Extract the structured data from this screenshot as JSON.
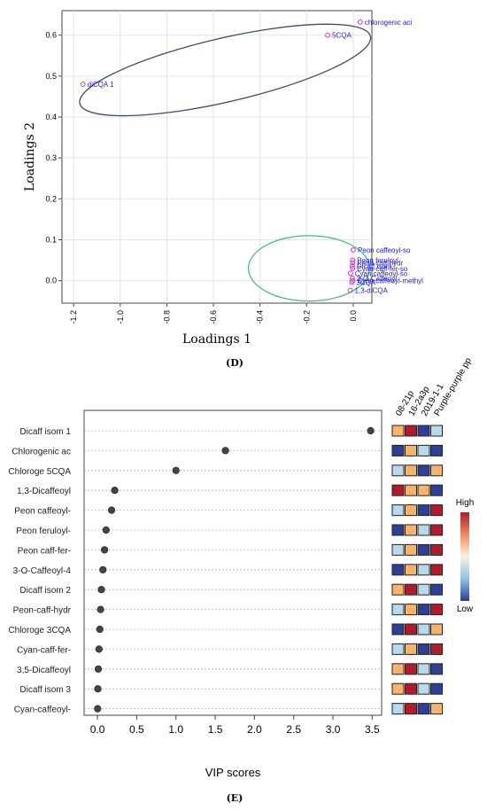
{
  "chart_data": [
    {
      "type": "scatter",
      "panel_label": "(D)",
      "title": "",
      "xlabel": "Loadings 1",
      "ylabel": "Loadings 2",
      "xlim": [
        -1.25,
        0.08
      ],
      "ylim": [
        -0.055,
        0.66
      ],
      "x_ticks": [
        -1.2,
        -1.0,
        -0.8,
        -0.6,
        -0.4,
        -0.2,
        0.0
      ],
      "x_tick_labels": [
        "-1.2",
        "-1.0",
        "-0.8",
        "-0.6",
        "-0.4",
        "-0.2",
        "0.0"
      ],
      "y_ticks": [
        0.0,
        0.1,
        0.2,
        0.3,
        0.4,
        0.5,
        0.6
      ],
      "y_tick_labels": [
        "0.0",
        "0.1",
        "0.2",
        "0.3",
        "0.4",
        "0.5",
        "0.6"
      ],
      "grid": true,
      "point_color": "#cc33cc",
      "label_color": "#1a1aee",
      "points": [
        {
          "label": "chlorogenic aci",
          "x": 0.03,
          "y": 0.632
        },
        {
          "label": "5CQA",
          "x": -0.11,
          "y": 0.6
        },
        {
          "label": "diCQA 1",
          "x": -1.16,
          "y": 0.48
        },
        {
          "label": "Peon caffeoyl-so",
          "x": 0.0,
          "y": 0.075
        },
        {
          "label": "Peon feruloyl",
          "x": -0.003,
          "y": 0.05
        },
        {
          "label": "Peon caff-hydr",
          "x": -0.002,
          "y": 0.044
        },
        {
          "label": "Dicaff isom",
          "x": -0.004,
          "y": 0.036
        },
        {
          "label": "Cyan-caff-fer-so",
          "x": -0.003,
          "y": 0.03
        },
        {
          "label": "Cyan caffeoyl-so",
          "x": -0.012,
          "y": 0.018
        },
        {
          "label": "3-O-Caffeoyl",
          "x": -0.004,
          "y": 0.006
        },
        {
          "label": "Cyan caffeoyl-methyl",
          "x": -0.002,
          "y": 0.0
        },
        {
          "label": "3CQA",
          "x": -0.006,
          "y": -0.004
        },
        {
          "label": "1,3-diCQA",
          "x": -0.013,
          "y": -0.024
        }
      ],
      "ellipses": [
        {
          "cx": -0.55,
          "cy": 0.515,
          "rx": 0.64,
          "ry": 0.078,
          "angle_deg": -13,
          "color": "#3b4f6b"
        },
        {
          "cx": -0.19,
          "cy": 0.03,
          "rx": 0.26,
          "ry": 0.08,
          "angle_deg": 0,
          "color": "#4cc17a"
        }
      ]
    },
    {
      "type": "dot",
      "panel_label": "(E)",
      "title": "",
      "xlabel": "VIP scores",
      "xlim": [
        -0.17,
        3.62
      ],
      "x_ticks": [
        0.0,
        0.5,
        1.0,
        1.5,
        2.0,
        2.5,
        3.0,
        3.5
      ],
      "x_tick_labels": [
        "0.0",
        "0.5",
        "1.0",
        "1.5",
        "2.0",
        "2.5",
        "3.0",
        "3.5"
      ],
      "categories": [
        "Dicaff isom 1",
        "Chlorogenic ac",
        "Chloroge 5CQA",
        "1,3-Dicaffeoyl",
        "Peon caffeoyl-",
        "Peon feruloyl-",
        "Peon caff-fer-",
        "3-O-Caffeoyl-4",
        "Dicaff isom 2",
        "Peon-caff-hydr",
        "Chloroge 3CQA",
        "Cyan-caff-fer-",
        "3,5-Dicaffeoyl",
        "Dicaff isom 3",
        "Cyan-caffeoyl-"
      ],
      "values": [
        3.48,
        1.63,
        1.0,
        0.22,
        0.18,
        0.11,
        0.09,
        0.07,
        0.05,
        0.04,
        0.03,
        0.02,
        0.01,
        0.005,
        0.002
      ],
      "heatmap": {
        "columns": [
          "08-21p",
          "16-2a3p",
          "2019-1-1",
          "Purple-purple pp"
        ],
        "levels": [
          [
            2,
            4,
            0,
            1
          ],
          [
            0,
            2,
            1,
            0
          ],
          [
            1,
            2,
            0,
            2
          ],
          [
            4,
            2,
            2,
            0
          ],
          [
            1,
            2,
            0,
            4
          ],
          [
            0,
            2,
            1,
            4
          ],
          [
            1,
            2,
            0,
            4
          ],
          [
            0,
            2,
            1,
            4
          ],
          [
            2,
            4,
            1,
            0
          ],
          [
            1,
            2,
            0,
            4
          ],
          [
            0,
            4,
            1,
            2
          ],
          [
            1,
            2,
            0,
            4
          ],
          [
            2,
            4,
            1,
            0
          ],
          [
            2,
            4,
            1,
            0
          ],
          [
            1,
            4,
            0,
            2
          ]
        ],
        "level_colors": [
          "#2f3f94",
          "#b7d9ea",
          "#f7b26c",
          "#f4e3a6",
          "#b01c2e"
        ],
        "legend_high": "High",
        "legend_low": "Low"
      }
    }
  ]
}
